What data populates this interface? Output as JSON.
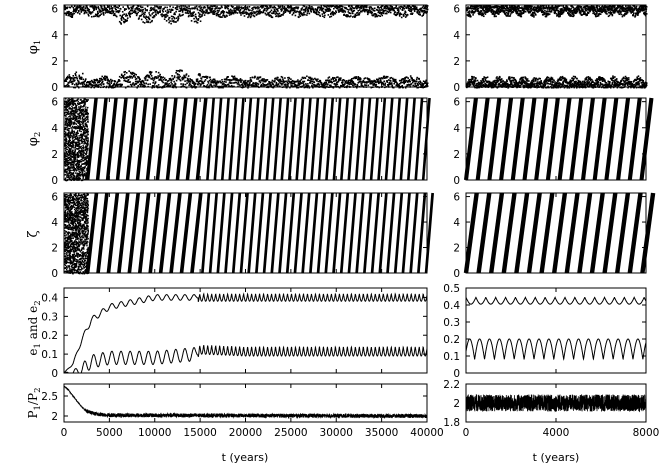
{
  "chart_data": [
    {
      "type": "scatter",
      "panel": "phi1-long",
      "ylabel": "φ",
      "ylabel_sub": "1",
      "xlim": [
        0,
        40000
      ],
      "ylim": [
        0,
        6.28
      ],
      "x_ticks": [
        0,
        5000,
        10000,
        15000,
        20000,
        25000,
        30000,
        35000,
        40000
      ],
      "y_ticks": [
        "0",
        "2",
        "4",
        "6"
      ],
      "description_series": [
        {
          "name": "",
          "x_range": [
            0,
            40000
          ],
          "band_low": [
            0,
            1.0
          ],
          "band_high": [
            5.2,
            6.28
          ]
        }
      ]
    },
    {
      "type": "scatter",
      "panel": "phi1-short",
      "xlim": [
        0,
        8000
      ],
      "ylim": [
        0,
        6.28
      ],
      "x_ticks": [
        0,
        4000,
        8000
      ],
      "y_ticks": [
        "0",
        "2",
        "4",
        "6"
      ]
    },
    {
      "type": "scatter",
      "panel": "phi2-long",
      "ylabel": "φ",
      "ylabel_sub": "2",
      "xlim": [
        0,
        40000
      ],
      "ylim": [
        0,
        6.28
      ],
      "y_ticks": [
        "0",
        "2",
        "4",
        "6"
      ]
    },
    {
      "type": "scatter",
      "panel": "phi2-short",
      "xlim": [
        0,
        8000
      ],
      "ylim": [
        0,
        6.28
      ],
      "y_ticks": [
        "0",
        "2",
        "4",
        "6"
      ]
    },
    {
      "type": "scatter",
      "panel": "zeta-long",
      "ylabel": "ζ",
      "xlim": [
        0,
        40000
      ],
      "ylim": [
        0,
        6.28
      ],
      "y_ticks": [
        "0",
        "2",
        "4",
        "6"
      ]
    },
    {
      "type": "scatter",
      "panel": "zeta-short",
      "xlim": [
        0,
        8000
      ],
      "ylim": [
        0,
        6.28
      ],
      "y_ticks": [
        "0",
        "2",
        "4",
        "6"
      ]
    },
    {
      "type": "line",
      "panel": "ecc-long",
      "ylabel_parts": [
        "e",
        "1",
        " and e",
        "2"
      ],
      "xlim": [
        0,
        40000
      ],
      "ylim": [
        0,
        0.45
      ],
      "y_ticks": [
        "0",
        "0.1",
        "0.2",
        "0.3",
        "0.4"
      ],
      "series": [
        {
          "name": "",
          "x": [
            0,
            1000,
            2000,
            3000,
            5000,
            8000,
            10000,
            14500,
            15000,
            20000,
            40000
          ],
          "values": [
            0.0,
            0.05,
            0.18,
            0.28,
            0.35,
            0.38,
            0.4,
            0.4,
            0.42,
            0.42,
            0.42
          ]
        },
        {
          "name": "",
          "x": [
            0,
            1000,
            2000,
            3000,
            5000,
            8000,
            10000,
            14500,
            15000,
            20000,
            40000
          ],
          "values": [
            0.0,
            0.0,
            0.02,
            0.06,
            0.08,
            0.08,
            0.08,
            0.1,
            0.15,
            0.14,
            0.14
          ]
        }
      ]
    },
    {
      "type": "line",
      "panel": "ecc-short",
      "xlim": [
        0,
        8000
      ],
      "ylim": [
        0,
        0.5
      ],
      "y_ticks": [
        "0",
        "0.1",
        "0.2",
        "0.3",
        "0.4",
        "0.5"
      ]
    },
    {
      "type": "line",
      "panel": "period-long",
      "ylabel_parts": [
        "P",
        "1",
        "/P",
        "2"
      ],
      "xlim": [
        0,
        40000
      ],
      "ylim": [
        1.85,
        2.8
      ],
      "y_ticks": [
        "2",
        "2.5"
      ],
      "xlabel": "t (years)",
      "x_tick_labels": [
        "0",
        "5000",
        "10000",
        "15000",
        "20000",
        "25000",
        "30000",
        "35000",
        "40000"
      ],
      "series": [
        {
          "name": "",
          "x": [
            0,
            500,
            1000,
            1500,
            2000,
            2500,
            3500,
            5000,
            40000
          ],
          "values": [
            2.75,
            2.65,
            2.5,
            2.35,
            2.22,
            2.12,
            2.05,
            2.02,
            2.0
          ]
        }
      ]
    },
    {
      "type": "line",
      "panel": "period-short",
      "xlim": [
        0,
        8000
      ],
      "ylim": [
        1.8,
        2.2
      ],
      "y_ticks": [
        "1.8",
        "2",
        "2.2"
      ],
      "xlabel": "t (years)",
      "x_tick_labels": [
        "0",
        "4000",
        "8000"
      ]
    }
  ]
}
